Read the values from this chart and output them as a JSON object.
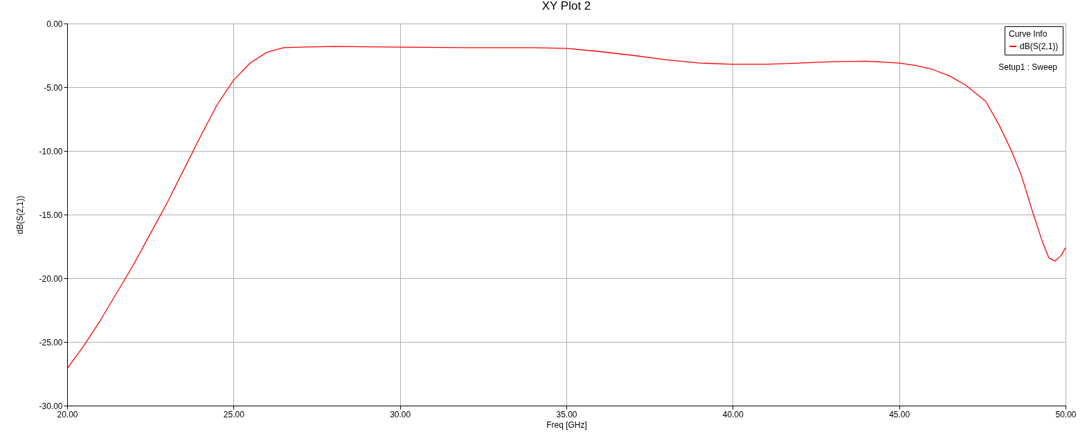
{
  "chart_data": {
    "type": "line",
    "title": "XY Plot 2",
    "xlabel": "Freq [GHz]",
    "ylabel": "dB(S(2,1))",
    "legend_title": "Curve Info",
    "annotations": [
      "Setup1 : Sweep"
    ],
    "xlim": [
      20,
      50
    ],
    "xticks": [
      {
        "value": 20,
        "label": "20.00"
      },
      {
        "value": 25,
        "label": "25.00"
      },
      {
        "value": 30,
        "label": "30.00"
      },
      {
        "value": 35,
        "label": "35.00"
      },
      {
        "value": 40,
        "label": "40.00"
      },
      {
        "value": 45,
        "label": "45.00"
      },
      {
        "value": 50,
        "label": "50.00"
      }
    ],
    "ylim": [
      -30,
      0
    ],
    "yticks": [
      {
        "value": -30,
        "label": "-30.00"
      },
      {
        "value": -25,
        "label": "-25.00"
      },
      {
        "value": -20,
        "label": "-20.00"
      },
      {
        "value": -15,
        "label": "-15.00"
      },
      {
        "value": -10,
        "label": "-10.00"
      },
      {
        "value": -5,
        "label": "-5.00"
      },
      {
        "value": 0,
        "label": "0.00"
      }
    ],
    "grid": true,
    "legend": "top right",
    "marker": "none",
    "line_style": "solid",
    "series": [
      {
        "name": "dB(S(2,1))",
        "color": "#ff0000",
        "x": [
          20,
          20.5,
          21,
          21.5,
          22,
          22.5,
          23,
          23.5,
          24,
          24.5,
          25,
          25.5,
          26,
          26.5,
          27,
          28,
          30,
          32,
          34,
          35,
          36,
          37,
          38,
          39,
          40,
          41,
          42,
          43,
          44,
          45,
          45.5,
          46,
          46.5,
          47,
          47.6,
          48,
          48.36,
          48.67,
          49,
          49.3,
          49.5,
          49.68,
          49.87,
          50
        ],
        "values": [
          -27.1,
          -25.3,
          -23.3,
          -21.1,
          -18.9,
          -16.5,
          -14.1,
          -11.5,
          -8.9,
          -6.4,
          -4.45,
          -3.1,
          -2.26,
          -1.9,
          -1.85,
          -1.8,
          -1.85,
          -1.9,
          -1.9,
          -1.95,
          -2.2,
          -2.5,
          -2.85,
          -3.1,
          -3.2,
          -3.2,
          -3.1,
          -3.0,
          -2.95,
          -3.1,
          -3.3,
          -3.6,
          -4.1,
          -4.84,
          -6.1,
          -7.94,
          -9.9,
          -11.9,
          -14.7,
          -17.1,
          -18.4,
          -18.65,
          -18.2,
          -17.6
        ]
      }
    ]
  }
}
